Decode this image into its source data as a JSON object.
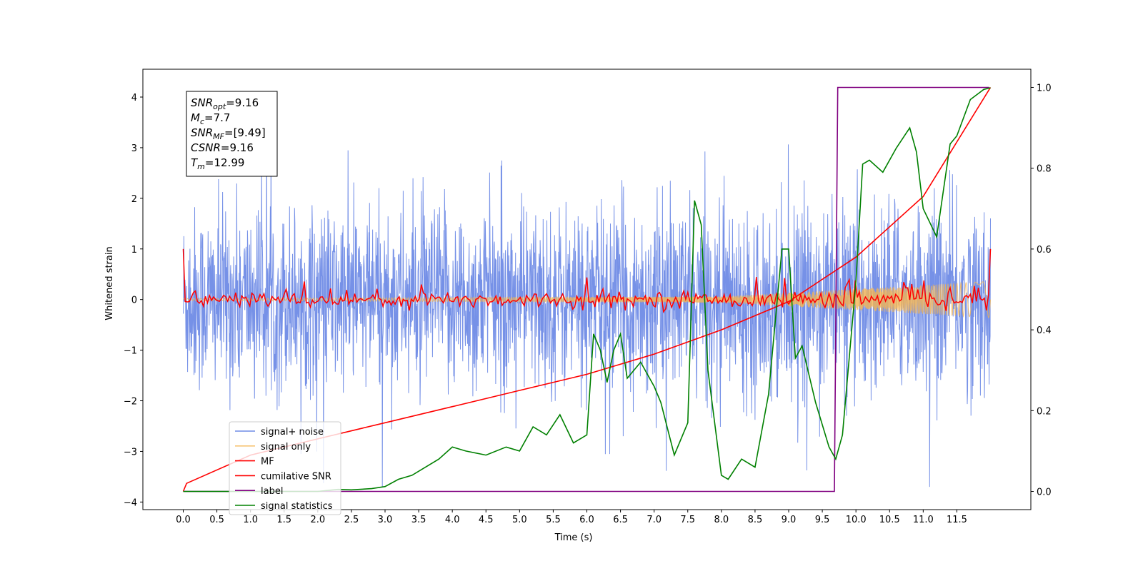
{
  "chart_data": {
    "type": "line",
    "xlabel": "Time (s)",
    "ylabel": "Whitened strain",
    "xlim": [
      -0.6,
      12.6
    ],
    "ylim": [
      -4.15,
      4.55
    ],
    "ylim_right": [
      -0.045,
      1.045
    ],
    "x_ticks": [
      "0.0",
      "0.5",
      "1.0",
      "1.5",
      "2.0",
      "2.5",
      "3.0",
      "3.5",
      "4.0",
      "4.5",
      "5.0",
      "5.5",
      "6.0",
      "6.5",
      "7.0",
      "7.5",
      "8.0",
      "8.5",
      "9.0",
      "9.5",
      "10.0",
      "10.5",
      "11.0",
      "11.5"
    ],
    "y_ticks": [
      "−4",
      "−3",
      "−2",
      "−1",
      "0",
      "1",
      "2",
      "3",
      "4"
    ],
    "y_right_ticks": [
      "0.0",
      "0.2",
      "0.4",
      "0.6",
      "0.8",
      "1.0"
    ],
    "annotation": [
      {
        "sym": "SNR",
        "sub": "opt",
        "value": "=9.16"
      },
      {
        "sym": "M",
        "sub": "c",
        "value": "=7.7"
      },
      {
        "sym": "SNR",
        "sub": "MF",
        "value": "=[9.49]"
      },
      {
        "sym": "CSNR",
        "sub": "",
        "value": "=9.16"
      },
      {
        "sym": "T",
        "sub": "m",
        "value": "=12.99"
      }
    ],
    "legend_location": "lower-left",
    "series": [
      {
        "name": "signal+ noise",
        "color": "#6f8be6",
        "axis": "left",
        "style": "noise",
        "amplitude": 0.9
      },
      {
        "name": "signal only",
        "color": "#f5b553",
        "axis": "left",
        "style": "chirp",
        "envelope": [
          [
            0,
            0.02
          ],
          [
            8,
            0.06
          ],
          [
            12,
            0.36
          ]
        ]
      },
      {
        "name": "MF",
        "color": "#ff0000",
        "axis": "left",
        "style": "noisy-flat",
        "start_value": 1.0,
        "end_value": 1.0,
        "amplitude": 0.08
      },
      {
        "name": "cumilative SNR",
        "color": "#ff0000",
        "axis": "right",
        "x": [
          0.0,
          0.05,
          1.0,
          2.0,
          3.0,
          4.0,
          5.0,
          6.0,
          7.0,
          8.0,
          9.0,
          10.0,
          11.0,
          12.0
        ],
        "y": [
          0.0,
          0.02,
          0.09,
          0.13,
          0.17,
          0.21,
          0.25,
          0.29,
          0.34,
          0.4,
          0.47,
          0.58,
          0.73,
          1.0
        ]
      },
      {
        "name": "label",
        "color": "#800080",
        "axis": "right",
        "x": [
          0.0,
          9.68,
          9.73,
          11.98
        ],
        "y": [
          0.0,
          0.0,
          1.0,
          1.0
        ]
      },
      {
        "name": "signal statistics",
        "color": "#008000",
        "axis": "right",
        "x": [
          0.0,
          0.4,
          1.0,
          1.5,
          2.0,
          2.3,
          2.5,
          2.8,
          3.0,
          3.2,
          3.4,
          3.6,
          3.8,
          4.0,
          4.2,
          4.5,
          4.8,
          5.0,
          5.2,
          5.4,
          5.6,
          5.8,
          6.0,
          6.1,
          6.2,
          6.3,
          6.4,
          6.5,
          6.6,
          6.8,
          7.0,
          7.1,
          7.3,
          7.5,
          7.6,
          7.7,
          7.8,
          8.0,
          8.1,
          8.3,
          8.5,
          8.7,
          8.9,
          9.0,
          9.1,
          9.2,
          9.4,
          9.6,
          9.7,
          9.8,
          10.0,
          10.1,
          10.2,
          10.4,
          10.6,
          10.8,
          10.9,
          11.0,
          11.2,
          11.4,
          11.5,
          11.7,
          11.9,
          12.0
        ],
        "y": [
          0.0,
          0.0,
          0.0,
          0.0,
          0.0,
          0.005,
          0.004,
          0.007,
          0.012,
          0.03,
          0.04,
          0.06,
          0.08,
          0.11,
          0.1,
          0.09,
          0.11,
          0.1,
          0.16,
          0.14,
          0.19,
          0.12,
          0.14,
          0.39,
          0.35,
          0.27,
          0.35,
          0.39,
          0.28,
          0.32,
          0.26,
          0.22,
          0.09,
          0.17,
          0.72,
          0.66,
          0.3,
          0.04,
          0.03,
          0.08,
          0.06,
          0.24,
          0.6,
          0.6,
          0.33,
          0.36,
          0.22,
          0.11,
          0.08,
          0.14,
          0.52,
          0.81,
          0.82,
          0.79,
          0.85,
          0.9,
          0.84,
          0.7,
          0.63,
          0.86,
          0.88,
          0.97,
          0.995,
          0.999
        ]
      }
    ]
  },
  "colors": {
    "noise": "#6f8be6",
    "signal": "#f5b553",
    "mf": "#ff0000",
    "label": "#800080",
    "stat": "#008000"
  }
}
